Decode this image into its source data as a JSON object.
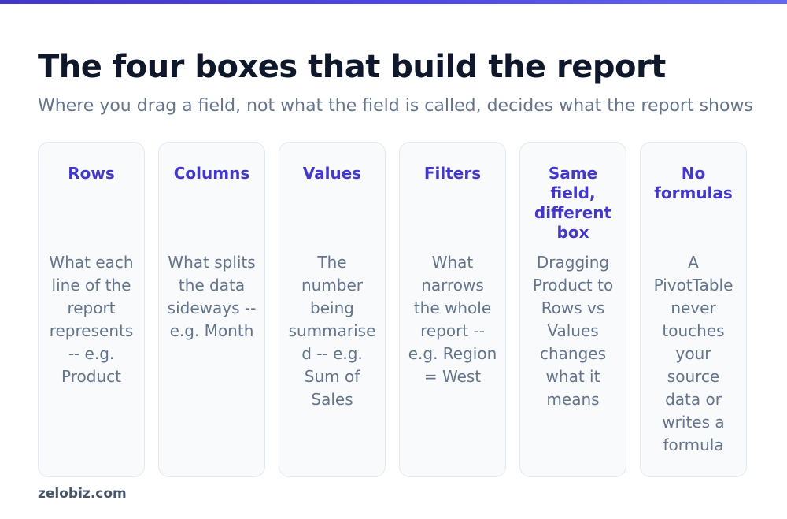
{
  "colors": {
    "accent": "#4338ca",
    "title": "#0f172a",
    "muted": "#64748b",
    "card_bg": "#f8fafc",
    "card_border": "#e2e8f0"
  },
  "header": {
    "title": "The four boxes that build the report",
    "subtitle": "Where you drag a field, not what the field is called, decides what the report shows"
  },
  "cards": [
    {
      "title": "Rows",
      "body": "What each line of the report represents -- e.g. Product"
    },
    {
      "title": "Columns",
      "body": "What splits the data sideways -- e.g. Month"
    },
    {
      "title": "Values",
      "body": "The number being summarised -- e.g. Sum of Sales"
    },
    {
      "title": "Filters",
      "body": "What narrows the whole report -- e.g. Region = West"
    },
    {
      "title": "Same field, different box",
      "body": "Dragging Product to Rows vs Values changes what it means"
    },
    {
      "title": "No formulas",
      "body": "A PivotTable never touches your source data or writes a formula"
    }
  ],
  "footer": {
    "brand": "zelobiz.com"
  }
}
